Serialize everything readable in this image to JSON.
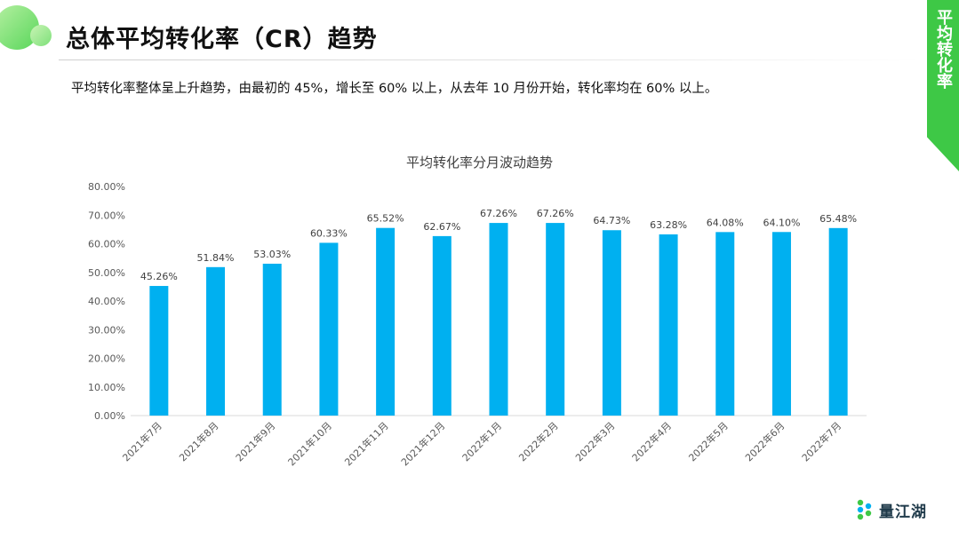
{
  "slide": {
    "title": "总体平均转化率（CR）趋势",
    "side_tab": "平均转化率",
    "summary": "平均转化率整体呈上升趋势，由最初的 45%，增长至 60% 以上，从去年 10 月份开始，转化率均在 60% 以上。",
    "brand": "量江湖"
  },
  "colors": {
    "accent_green": "#3ec846",
    "bar": "#00b0f0"
  },
  "chart_data": {
    "type": "bar",
    "title": "平均转化率分月波动趋势",
    "categories": [
      "2021年7月",
      "2021年8月",
      "2021年9月",
      "2021年10月",
      "2021年11月",
      "2021年12月",
      "2022年1月",
      "2022年2月",
      "2022年3月",
      "2022年4月",
      "2022年5月",
      "2022年6月",
      "2022年7月"
    ],
    "values": [
      45.26,
      51.84,
      53.03,
      60.33,
      65.52,
      62.67,
      67.26,
      67.26,
      64.73,
      63.28,
      64.08,
      64.1,
      65.48
    ],
    "value_labels": [
      "45.26%",
      "51.84%",
      "53.03%",
      "60.33%",
      "65.52%",
      "62.67%",
      "67.26%",
      "67.26%",
      "64.73%",
      "63.28%",
      "64.08%",
      "64.10%",
      "65.48%"
    ],
    "yticks": [
      "0.00%",
      "10.00%",
      "20.00%",
      "30.00%",
      "40.00%",
      "50.00%",
      "60.00%",
      "70.00%",
      "80.00%"
    ],
    "ylim": [
      0,
      80
    ],
    "grid": false,
    "legend": "none"
  }
}
